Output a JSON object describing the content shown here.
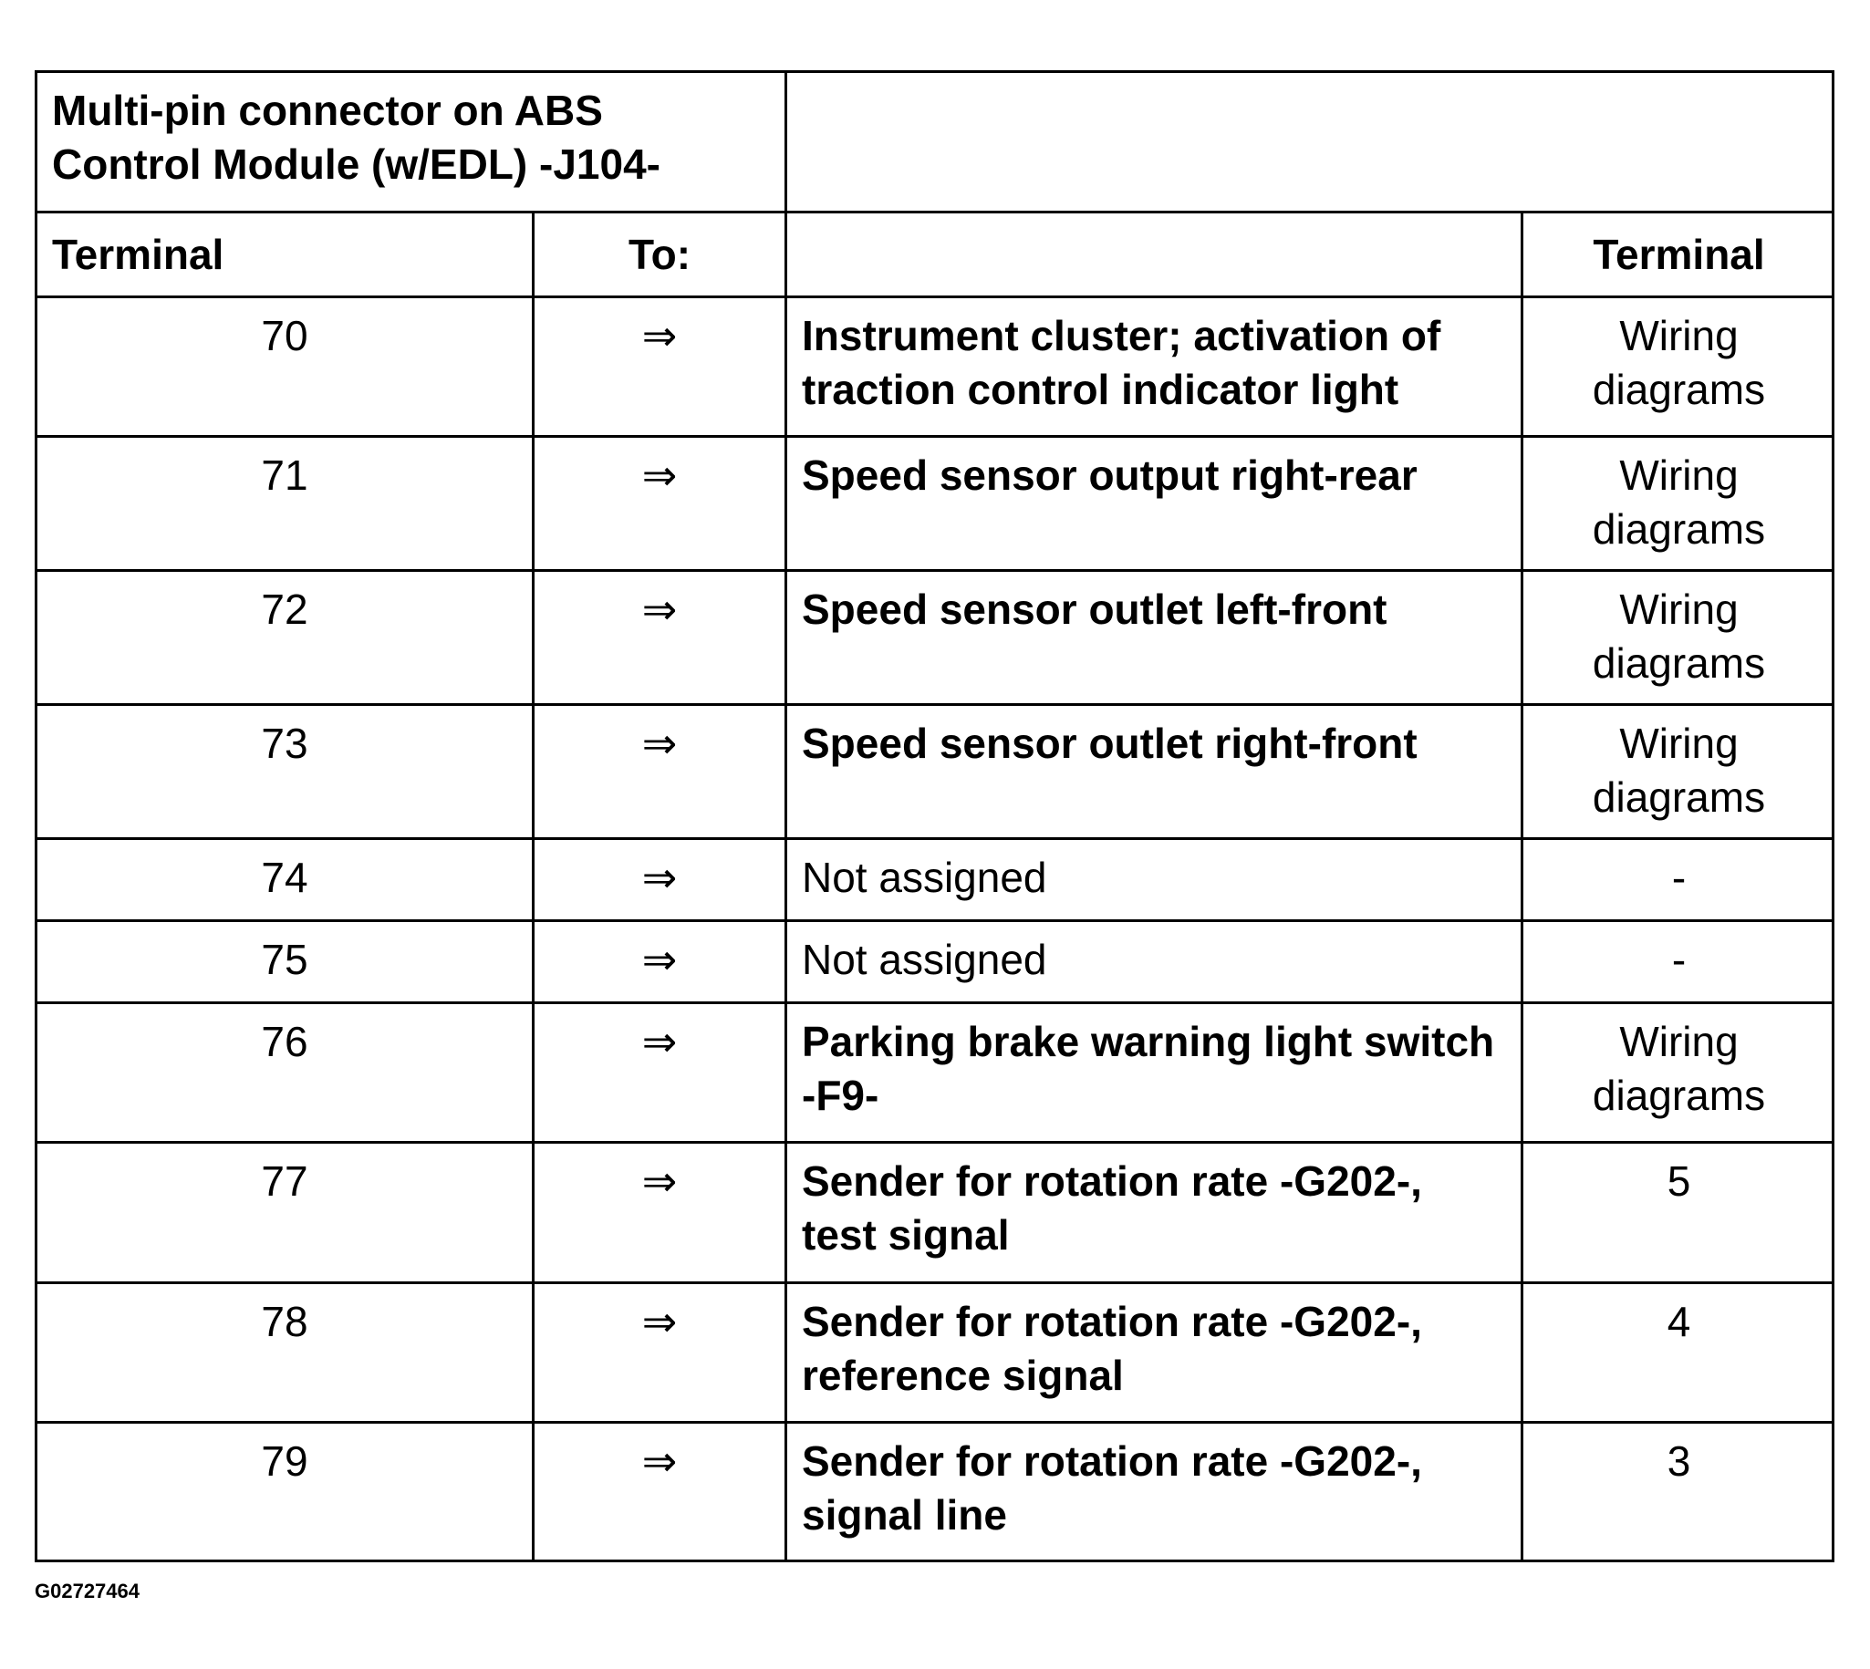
{
  "title": "Multi-pin connector on ABS Control Module (w/EDL) -J104-",
  "title_lines": [
    "Multi-pin connector on ABS",
    "Control Module (w/EDL) -J104-"
  ],
  "headers": {
    "terminal": "Terminal",
    "to": "To:",
    "description": "",
    "dest_terminal": "Terminal"
  },
  "arrow_icon": "⇒",
  "rows": [
    {
      "terminal": "70",
      "description": "Instrument cluster; activation of traction control indicator light",
      "bold": true,
      "dest": "Wiring diagrams"
    },
    {
      "terminal": "71",
      "description": "Speed sensor output right-rear",
      "bold": true,
      "dest": "Wiring diagrams"
    },
    {
      "terminal": "72",
      "description": "Speed sensor outlet left-front",
      "bold": true,
      "dest": "Wiring diagrams"
    },
    {
      "terminal": "73",
      "description": "Speed sensor outlet right-front",
      "bold": true,
      "dest": "Wiring diagrams"
    },
    {
      "terminal": "74",
      "description": "Not assigned",
      "bold": false,
      "dest": "-"
    },
    {
      "terminal": "75",
      "description": "Not assigned",
      "bold": false,
      "dest": "-"
    },
    {
      "terminal": "76",
      "description": "Parking brake warning light switch -F9-",
      "bold": true,
      "dest": "Wiring diagrams"
    },
    {
      "terminal": "77",
      "description": "Sender for rotation rate -G202-, test signal",
      "bold": true,
      "dest": "5"
    },
    {
      "terminal": "78",
      "description": "Sender for rotation rate -G202-, reference signal",
      "bold": true,
      "dest": "4"
    },
    {
      "terminal": "79",
      "description": "Sender for rotation rate -G202-, signal line",
      "bold": true,
      "dest": "3"
    }
  ],
  "figure_code": "G02727464"
}
